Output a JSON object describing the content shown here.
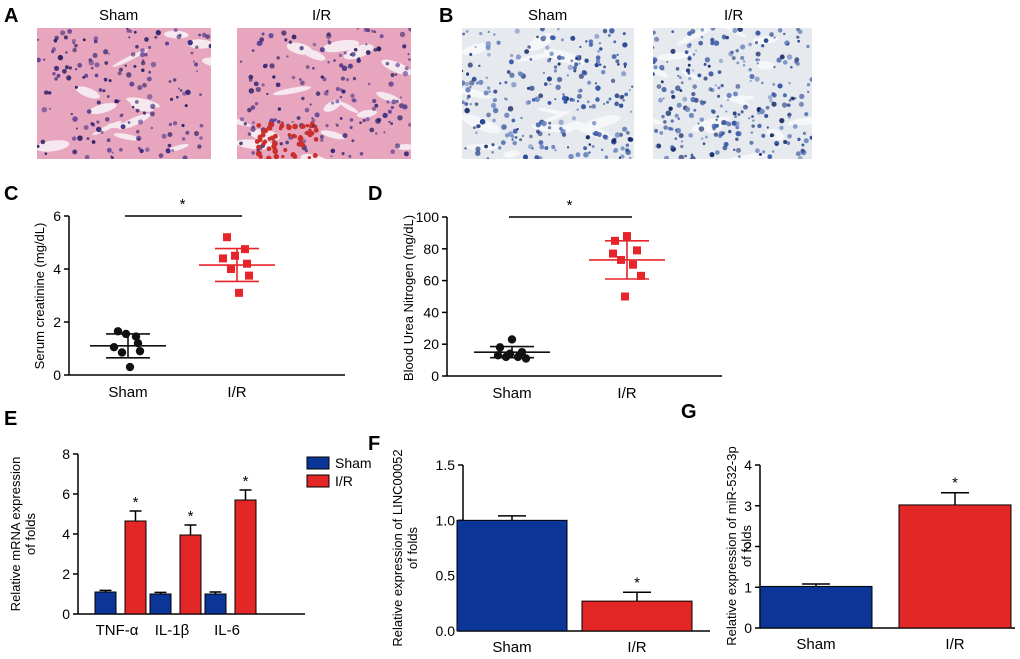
{
  "panels": {
    "A": {
      "letter": "A",
      "labels": [
        "Sham",
        "I/R"
      ],
      "image_description": "H&E-stained kidney tissue"
    },
    "B": {
      "letter": "B",
      "labels": [
        "Sham",
        "I/R"
      ],
      "image_description": "Immunostained kidney tissue with blue counterstain"
    }
  },
  "colors": {
    "sham_point": "#111111",
    "ir_point": "#e8242b",
    "sham_bar": "#0b3697",
    "ir_bar": "#e32626",
    "he_bg": "#e7a6bd",
    "ihc_bg": "#e6e9ee"
  },
  "chart_data": [
    {
      "id": "C",
      "letter": "C",
      "type": "scatter",
      "ylabel": "Serum creatinine (mg/dL)",
      "ylim": [
        0,
        6
      ],
      "yticks": [
        "0",
        "2",
        "4",
        "6"
      ],
      "categories": [
        "Sham",
        "I/R"
      ],
      "groups": [
        {
          "name": "Sham",
          "mean": 1.1,
          "sd": 0.45,
          "points": [
            1.65,
            1.45,
            1.55,
            1.05,
            1.2,
            0.85,
            0.9,
            0.3
          ]
        },
        {
          "name": "I/R",
          "mean": 4.15,
          "sd": 0.62,
          "points": [
            5.2,
            4.75,
            4.5,
            4.4,
            4.2,
            4.0,
            3.75,
            3.1
          ]
        }
      ],
      "significance": "*"
    },
    {
      "id": "D",
      "letter": "D",
      "type": "scatter",
      "ylabel": "Blood Urea Nitrogen (mg/dL)",
      "ylim": [
        0,
        100
      ],
      "yticks": [
        "0",
        "20",
        "40",
        "60",
        "80",
        "100"
      ],
      "categories": [
        "Sham",
        "I/R"
      ],
      "groups": [
        {
          "name": "Sham",
          "mean": 15,
          "sd": 3.5,
          "points": [
            23,
            18,
            15,
            13,
            12,
            12,
            11,
            14
          ]
        },
        {
          "name": "I/R",
          "mean": 73,
          "sd": 12,
          "points": [
            88,
            85,
            79,
            77,
            73,
            70,
            63,
            50
          ]
        }
      ],
      "significance": "*"
    },
    {
      "id": "E",
      "letter": "E",
      "type": "bar",
      "ylabel": [
        "Relative mRNA expression",
        "of folds"
      ],
      "ylim": [
        0,
        8
      ],
      "yticks": [
        "0",
        "2",
        "4",
        "6",
        "8"
      ],
      "categories": [
        "TNF-α",
        "IL-1β",
        "IL-6"
      ],
      "series": [
        {
          "name": "Sham",
          "values": [
            1.1,
            1.0,
            1.0
          ],
          "errors": [
            0.08,
            0.08,
            0.1
          ]
        },
        {
          "name": "I/R",
          "values": [
            4.65,
            3.95,
            5.7
          ],
          "errors": [
            0.5,
            0.5,
            0.5
          ]
        }
      ],
      "legend": [
        "Sham",
        "I/R"
      ],
      "significance": [
        "*",
        "*",
        "*"
      ]
    },
    {
      "id": "F",
      "letter": "F",
      "type": "bar",
      "ylabel": [
        "Relative expression of LINC00052",
        "of folds"
      ],
      "ylim": [
        0,
        1.5
      ],
      "yticks": [
        "0.0",
        "0.5",
        "1.0",
        "1.5"
      ],
      "categories": [
        "Sham",
        "I/R"
      ],
      "values": [
        1.0,
        0.27
      ],
      "errors": [
        0.04,
        0.08
      ],
      "significance": [
        "",
        "*"
      ]
    },
    {
      "id": "G",
      "letter": "G",
      "type": "bar",
      "ylabel": [
        "Relative expression of miR-532-3p",
        "of folds"
      ],
      "ylim": [
        0,
        4
      ],
      "yticks": [
        "0",
        "1",
        "2",
        "3",
        "4"
      ],
      "categories": [
        "Sham",
        "I/R"
      ],
      "values": [
        1.02,
        3.02
      ],
      "errors": [
        0.06,
        0.3
      ],
      "significance": [
        "",
        "*"
      ]
    }
  ]
}
